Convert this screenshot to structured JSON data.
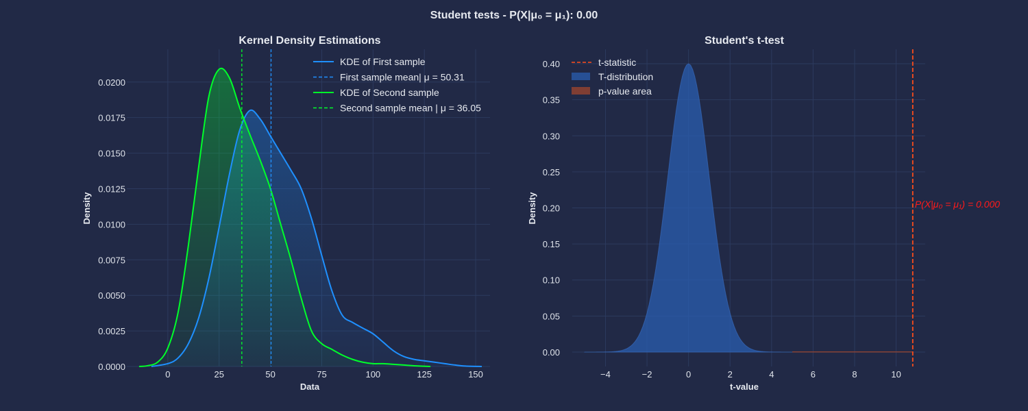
{
  "figure": {
    "suptitle": "Student tests - P(X|μ₀ = μ₁): 0.00",
    "background": "#212946"
  },
  "chart_data": [
    {
      "type": "area",
      "title": "Kernel Density Estimations",
      "xlabel": "Data",
      "ylabel": "Density",
      "xlim": [
        -20,
        157
      ],
      "ylim": [
        0,
        0.0223
      ],
      "xticks": [
        0,
        25,
        50,
        75,
        100,
        125,
        150
      ],
      "yticks": [
        0.0,
        0.0025,
        0.005,
        0.0075,
        0.01,
        0.0125,
        0.015,
        0.0175,
        0.02
      ],
      "ytick_labels": [
        "0.0000",
        "0.0025",
        "0.0050",
        "0.0075",
        "0.0100",
        "0.0125",
        "0.0150",
        "0.0175",
        "0.0200"
      ],
      "grid": true,
      "legend_position": "top-right",
      "series": [
        {
          "name": "KDE of First sample",
          "color": "#1f90ff",
          "x": [
            -8,
            0,
            5,
            10,
            15,
            20,
            25,
            30,
            35,
            40,
            45,
            50,
            55,
            60,
            65,
            70,
            75,
            80,
            85,
            90,
            95,
            100,
            105,
            110,
            115,
            120,
            125,
            130,
            135,
            140,
            145,
            153
          ],
          "y": [
            0.0,
            0.0002,
            0.0006,
            0.0016,
            0.0034,
            0.0062,
            0.0098,
            0.0135,
            0.0166,
            0.018,
            0.0174,
            0.0162,
            0.015,
            0.0138,
            0.0125,
            0.0104,
            0.0078,
            0.0053,
            0.0036,
            0.0031,
            0.0027,
            0.0023,
            0.0017,
            0.0011,
            0.0007,
            0.0005,
            0.0004,
            0.0003,
            0.0002,
            0.0001,
            3e-05,
            0.0
          ]
        },
        {
          "name": "KDE of Second sample",
          "color": "#00ff2a",
          "x": [
            -14,
            -10,
            -5,
            0,
            5,
            10,
            15,
            20,
            25,
            30,
            35,
            40,
            45,
            50,
            55,
            60,
            65,
            70,
            75,
            80,
            85,
            90,
            95,
            100,
            105,
            110,
            115,
            120,
            128
          ],
          "y": [
            0.0,
            5e-05,
            0.0003,
            0.0013,
            0.0038,
            0.0085,
            0.014,
            0.019,
            0.0209,
            0.0203,
            0.0182,
            0.0163,
            0.0145,
            0.0125,
            0.01,
            0.0075,
            0.0048,
            0.0025,
            0.0016,
            0.0012,
            0.0008,
            0.0005,
            0.0003,
            0.0002,
            0.0002,
            0.00015,
            0.0001,
            5e-05,
            0.0
          ]
        }
      ],
      "vlines": [
        {
          "name": "First sample mean| μ = 50.31",
          "x": 50.31,
          "color": "#1f90ff",
          "style": "dashed"
        },
        {
          "name": "Second sample mean | μ = 36.05",
          "x": 36.05,
          "color": "#00ff2a",
          "style": "dashed"
        }
      ],
      "legend": [
        {
          "label": "KDE of First sample",
          "color": "#1f90ff",
          "style": "solid"
        },
        {
          "label": "First sample mean| μ = 50.31",
          "color": "#1f90ff",
          "style": "dashed"
        },
        {
          "label": "KDE of Second sample",
          "color": "#00ff2a",
          "style": "solid"
        },
        {
          "label": "Second sample mean | μ = 36.05",
          "color": "#00ff2a",
          "style": "dashed"
        }
      ]
    },
    {
      "type": "area",
      "title": "Student's t-test",
      "xlabel": "t-value",
      "ylabel": "Density",
      "xlim": [
        -5.6,
        11.4
      ],
      "ylim": [
        -0.02,
        0.42
      ],
      "xticks": [
        -4,
        -2,
        0,
        2,
        4,
        6,
        8,
        10
      ],
      "xtick_labels": [
        "−4",
        "−2",
        "0",
        "2",
        "4",
        "6",
        "8",
        "10"
      ],
      "yticks": [
        0.0,
        0.05,
        0.1,
        0.15,
        0.2,
        0.25,
        0.3,
        0.35,
        0.4
      ],
      "ytick_labels": [
        "0.00",
        "0.05",
        "0.10",
        "0.15",
        "0.20",
        "0.25",
        "0.30",
        "0.35",
        "0.40"
      ],
      "grid": true,
      "legend_position": "top-left",
      "t_distribution": {
        "color": "#2a5db0",
        "x_range": [
          -5,
          5
        ],
        "peak": 0.4
      },
      "p_value_area": {
        "color": "#a0462e",
        "x_range": [
          5,
          10.8
        ]
      },
      "t_statistic": {
        "x": 10.8,
        "color": "#ff4d1a",
        "style": "dashed"
      },
      "annotation": {
        "text": "P(X|μ₀ = μ₁) = 0.000",
        "x": 10.8,
        "y": 0.205,
        "color": "#ff1a1a"
      },
      "legend": [
        {
          "label": "t-statistic",
          "color": "#ff4d1a",
          "style": "dashed"
        },
        {
          "label": "T-distribution",
          "color": "#2a5db0",
          "style": "patch"
        },
        {
          "label": "p-value area",
          "color": "#a0462e",
          "style": "patch"
        }
      ]
    }
  ]
}
